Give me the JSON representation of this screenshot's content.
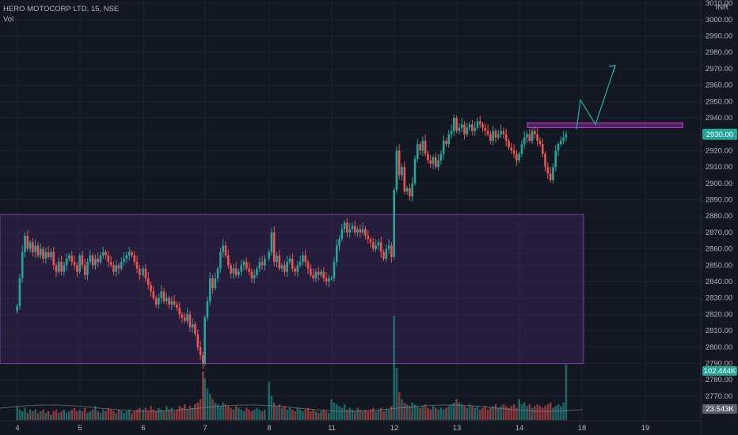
{
  "header": {
    "symbol_line": "HERO MOTOCORP LTD, 15, NSE",
    "volume_label": "Vol"
  },
  "chart_data": {
    "type": "candlestick",
    "title": "HERO MOTOCORP LTD, 15, NSE",
    "currency": "INR",
    "ylim": [
      2762,
      3012
    ],
    "y_ticks": [
      3010,
      3000,
      2990,
      2980,
      2970,
      2960,
      2950,
      2940,
      2930,
      2920,
      2910,
      2900,
      2890,
      2880,
      2870,
      2860,
      2850,
      2840,
      2830,
      2820,
      2810,
      2800,
      2790,
      2780,
      2770
    ],
    "y_tick_labels": [
      "3010.00",
      "3000.00",
      "2990.00",
      "2980.00",
      "2970.00",
      "2960.00",
      "2950.00",
      "2940.00",
      "2930.00",
      "2920.00",
      "2910.00",
      "2900.00",
      "2890.00",
      "2880.00",
      "2870.00",
      "2860.00",
      "2850.00",
      "2840.00",
      "2830.00",
      "2820.00",
      "2810.00",
      "2800.00",
      "2790.00",
      "2780.00",
      "2770.00"
    ],
    "x_day_labels": [
      "4",
      "5",
      "6",
      "7",
      "8",
      "11",
      "12",
      "13",
      "14",
      "18",
      "19"
    ],
    "last_price_label": "2930.00",
    "volume_label_high": "102.444K",
    "volume_label_avg": "23.543K",
    "range_box": {
      "price_low": 2790,
      "price_high": 2881,
      "from_day": 0,
      "to_day": 9
    },
    "resistance_zone": {
      "price_low": 2934,
      "price_high": 2937
    },
    "projection_path": [
      [
        2933,
        2934
      ],
      [
        2951,
        2941
      ],
      [
        2936,
        2941
      ],
      [
        2972,
        2961
      ]
    ],
    "sessions": [
      {
        "day": "4",
        "path": [
          2825,
          2842,
          2858,
          2868,
          2860,
          2864,
          2858,
          2862,
          2856,
          2860,
          2854,
          2858,
          2855,
          2858,
          2850,
          2846,
          2852,
          2846,
          2850,
          2854,
          2856,
          2852,
          2850,
          2846
        ],
        "vol": [
          8,
          6,
          5,
          7,
          4,
          6,
          5,
          6,
          4,
          5,
          6,
          4,
          5,
          3,
          5,
          6,
          4,
          5,
          6,
          4,
          5,
          6,
          7,
          5
        ]
      },
      {
        "day": "5",
        "path": [
          2856,
          2850,
          2844,
          2852,
          2856,
          2850,
          2854,
          2852,
          2856,
          2858,
          2856,
          2852,
          2850,
          2846,
          2850,
          2848,
          2852,
          2854,
          2856,
          2858,
          2856,
          2852,
          2848,
          2844
        ],
        "vol": [
          6,
          5,
          7,
          4,
          5,
          6,
          8,
          5,
          4,
          6,
          5,
          7,
          6,
          5,
          4,
          6,
          5,
          4,
          5,
          6,
          4,
          5,
          6,
          7
        ]
      },
      {
        "day": "6",
        "path": [
          2848,
          2842,
          2838,
          2834,
          2830,
          2826,
          2830,
          2834,
          2828,
          2830,
          2826,
          2828,
          2826,
          2824,
          2820,
          2818,
          2816,
          2820,
          2812,
          2814,
          2808,
          2800,
          2795,
          2790
        ],
        "vol": [
          6,
          7,
          5,
          8,
          6,
          5,
          7,
          6,
          5,
          8,
          6,
          7,
          5,
          6,
          8,
          7,
          9,
          6,
          8,
          7,
          9,
          10,
          12,
          28
        ]
      },
      {
        "day": "7",
        "path": [
          2818,
          2828,
          2842,
          2836,
          2842,
          2848,
          2858,
          2862,
          2856,
          2850,
          2845,
          2848,
          2844,
          2846,
          2850,
          2852,
          2848,
          2846,
          2842,
          2844,
          2848,
          2852,
          2850,
          2854
        ],
        "vol": [
          24,
          18,
          15,
          12,
          10,
          9,
          8,
          10,
          9,
          8,
          7,
          6,
          8,
          7,
          6,
          5,
          7,
          6,
          5,
          6,
          7,
          6,
          5,
          6
        ]
      },
      {
        "day": "8",
        "path": [
          2858,
          2870,
          2852,
          2856,
          2848,
          2850,
          2846,
          2852,
          2854,
          2848,
          2846,
          2850,
          2852,
          2856,
          2852,
          2848,
          2844,
          2842,
          2846,
          2844,
          2846,
          2842,
          2840,
          2842
        ],
        "vol": [
          22,
          14,
          10,
          8,
          9,
          7,
          8,
          6,
          7,
          6,
          5,
          7,
          6,
          5,
          6,
          7,
          5,
          6,
          5,
          4,
          5,
          6,
          5,
          4
        ]
      },
      {
        "day": "11",
        "path": [
          2842,
          2852,
          2862,
          2866,
          2872,
          2876,
          2870,
          2872,
          2874,
          2870,
          2872,
          2870,
          2872,
          2868,
          2866,
          2864,
          2860,
          2862,
          2864,
          2858,
          2854,
          2860,
          2862,
          2855
        ],
        "vol": [
          12,
          10,
          9,
          8,
          7,
          9,
          6,
          7,
          6,
          5,
          7,
          6,
          5,
          6,
          5,
          6,
          7,
          5,
          6,
          7,
          5,
          6,
          6,
          8
        ]
      },
      {
        "day": "12",
        "path": [
          2896,
          2920,
          2905,
          2910,
          2895,
          2897,
          2892,
          2900,
          2915,
          2924,
          2920,
          2926,
          2918,
          2914,
          2912,
          2916,
          2910,
          2914,
          2918,
          2926,
          2924,
          2930,
          2932,
          2940
        ],
        "vol": [
          60,
          30,
          16,
          12,
          10,
          9,
          8,
          10,
          9,
          8,
          7,
          8,
          9,
          7,
          6,
          8,
          7,
          6,
          7,
          6,
          7,
          8,
          9,
          10
        ]
      },
      {
        "day": "13",
        "path": [
          2932,
          2934,
          2936,
          2930,
          2934,
          2936,
          2932,
          2934,
          2938,
          2936,
          2934,
          2932,
          2930,
          2926,
          2932,
          2928,
          2930,
          2932,
          2930,
          2926,
          2922,
          2920,
          2918,
          2914
        ],
        "vol": [
          12,
          10,
          9,
          8,
          7,
          9,
          8,
          7,
          8,
          6,
          7,
          8,
          6,
          7,
          8,
          9,
          7,
          8,
          9,
          8,
          7,
          8,
          9,
          7
        ]
      },
      {
        "day": "14",
        "path": [
          2918,
          2924,
          2928,
          2930,
          2926,
          2932,
          2930,
          2926,
          2924,
          2918,
          2910,
          2906,
          2902,
          2910,
          2920,
          2924,
          2926,
          2928,
          2930
        ],
        "vol": [
          12,
          9,
          10,
          8,
          9,
          7,
          8,
          9,
          8,
          7,
          8,
          9,
          10,
          7,
          8,
          9,
          8,
          10,
          32
        ]
      }
    ]
  }
}
